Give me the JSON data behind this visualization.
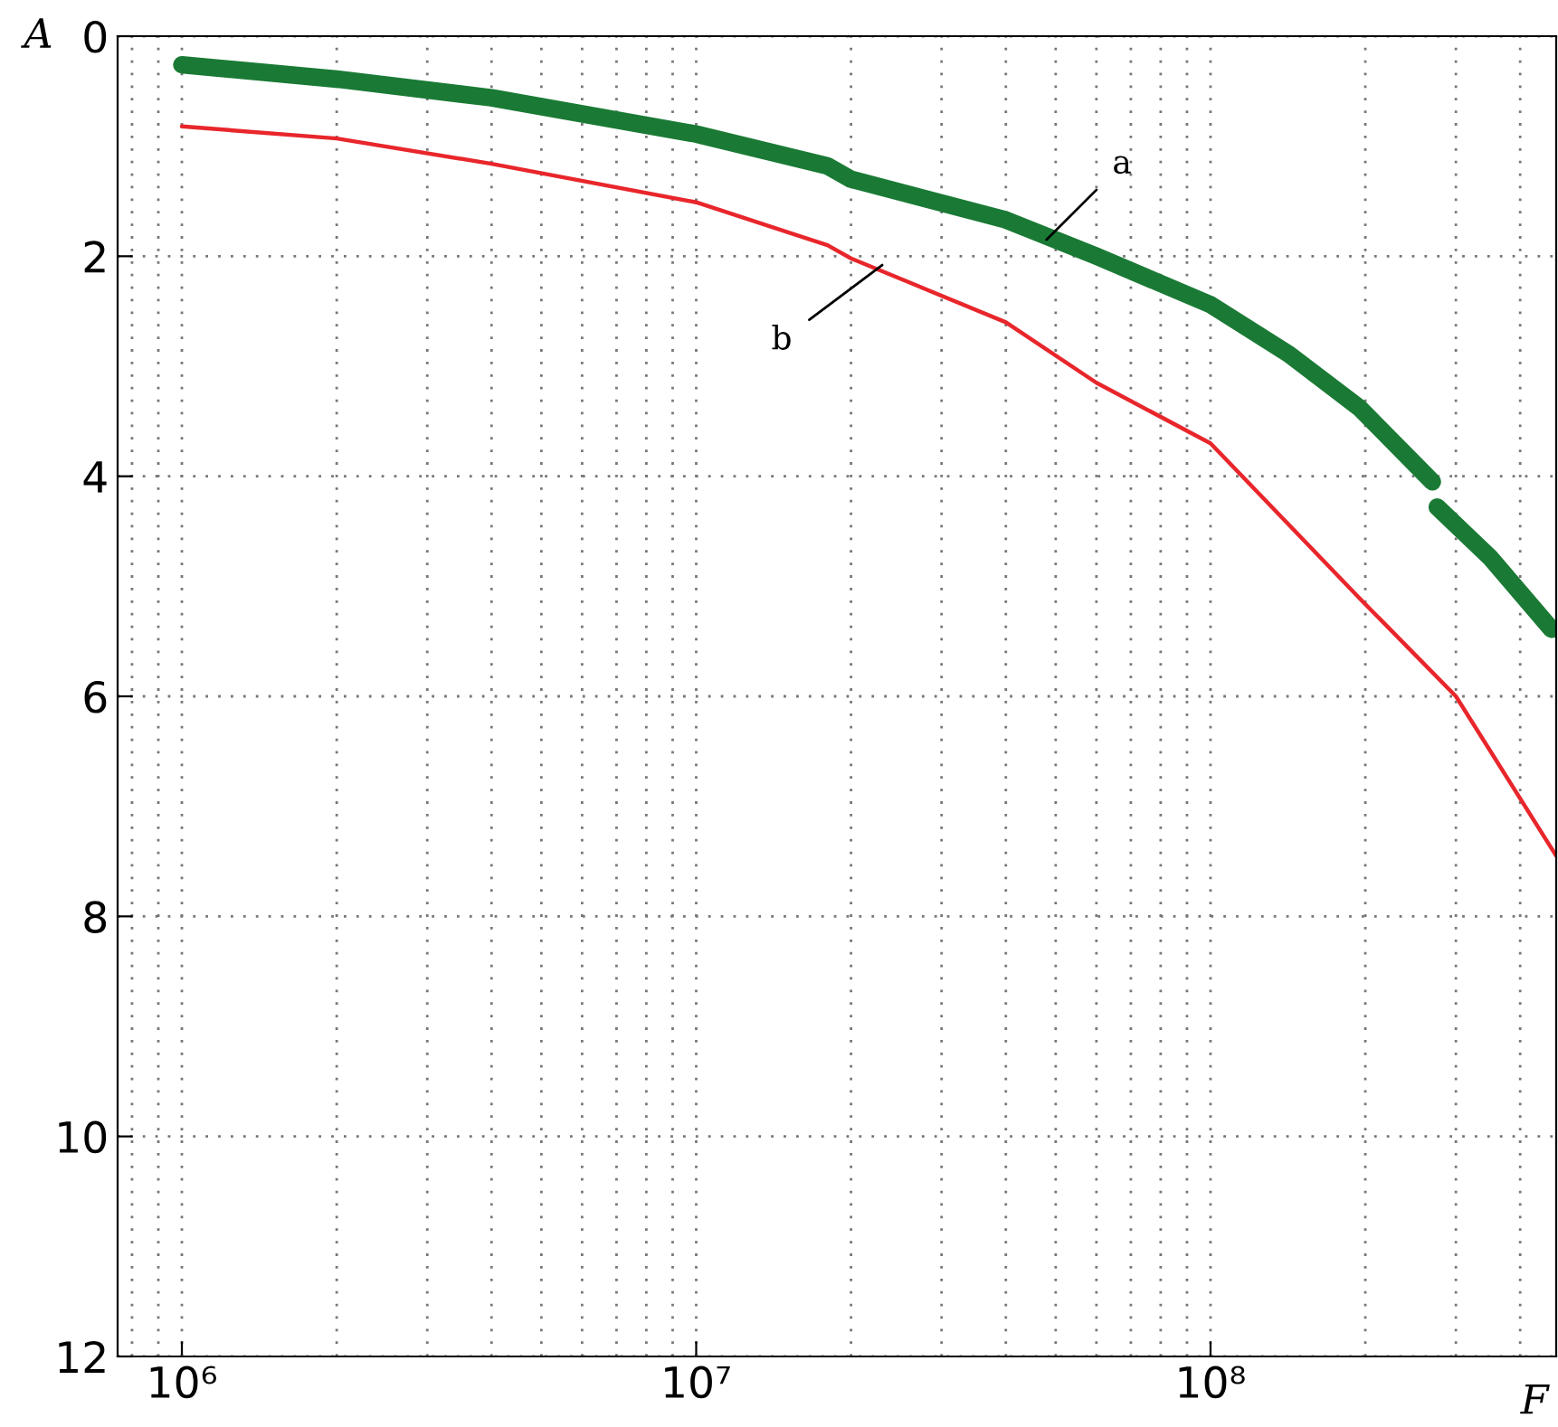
{
  "chart_data": {
    "type": "line",
    "xlabel": "F",
    "ylabel": "A",
    "log": "x",
    "grid": true,
    "line_style": "solid",
    "xlim": [
      750000,
      470000000
    ],
    "xticks": [
      {
        "value": 1000000,
        "label": "10⁶"
      },
      {
        "value": 10000000,
        "label": "10⁷"
      },
      {
        "value": 100000000,
        "label": "10⁸"
      }
    ],
    "ylim": [
      12,
      0
    ],
    "yticks": [
      0,
      2,
      4,
      6,
      8,
      10,
      12
    ],
    "series": [
      {
        "color": "#1a7a35",
        "x": [
          1000000,
          2000000,
          4000000,
          10000000,
          18000000,
          20000000,
          40000000,
          60000000,
          100000000,
          142000000,
          195000000,
          270000000,
          273000000,
          276000000,
          350000000,
          460000000
        ],
        "values": [
          0.26,
          0.39,
          0.56,
          0.89,
          1.18,
          1.3,
          1.67,
          2.0,
          2.44,
          2.89,
          3.38,
          4.05,
          null,
          4.28,
          4.74,
          5.39
        ]
      },
      {
        "color": "#e8262b",
        "x": [
          1000000,
          2000000,
          4000000,
          10000000,
          18000000,
          20000000,
          40000000,
          60000000,
          100000000,
          195000000,
          300000000,
          470000000
        ],
        "values": [
          0.82,
          0.93,
          1.16,
          1.51,
          1.9,
          2.02,
          2.6,
          3.15,
          3.7,
          5.11,
          6.0,
          7.45
        ]
      }
    ],
    "annotations": [
      {
        "text": "a",
        "x": 48000000,
        "y": 1.85
      },
      {
        "text": "b",
        "x": 23000000,
        "y": 2.08
      }
    ]
  }
}
